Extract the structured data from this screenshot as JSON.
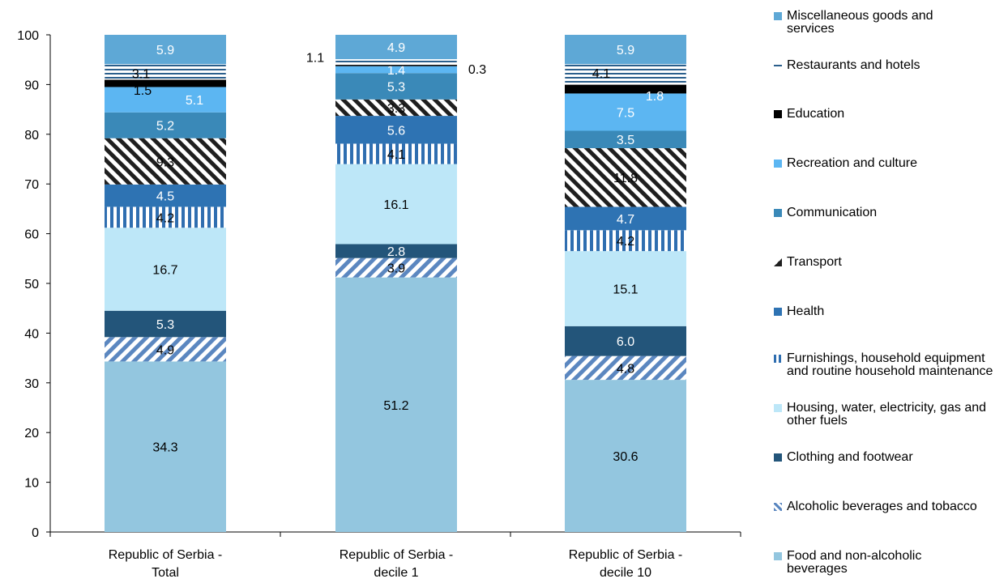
{
  "chart_data": {
    "type": "bar",
    "stacked": true,
    "categories": [
      "Republic of Serbia - Total",
      "Republic of Serbia - decile 1",
      "Republic of Serbia - decile 10"
    ],
    "ylim": [
      0,
      100
    ],
    "yticks": [
      0,
      10,
      20,
      30,
      40,
      50,
      60,
      70,
      80,
      90,
      100
    ],
    "grid": false,
    "legend_position": "right",
    "series": [
      {
        "name": "Food and non-alcoholic beverages",
        "color": "#93c6df",
        "pattern": "solid",
        "values": [
          34.3,
          51.2,
          30.6
        ],
        "labels": [
          "34.3",
          "51.2",
          "30.6"
        ]
      },
      {
        "name": "Alcoholic beverages and tobacco",
        "color": "#5b87c0",
        "pattern": "diag",
        "values": [
          4.9,
          3.9,
          4.8
        ],
        "labels": [
          "4.9",
          "3.9",
          "4.8"
        ]
      },
      {
        "name": "Clothing and footwear",
        "color": "#23557a",
        "pattern": "solid",
        "values": [
          5.3,
          2.8,
          6.0
        ],
        "labels": [
          "5.3",
          "2.8",
          "6.0"
        ]
      },
      {
        "name": "Housing, water, electricity, gas and other fuels",
        "color": "#bde7f8",
        "pattern": "solid",
        "values": [
          16.7,
          16.1,
          15.1
        ],
        "labels": [
          "16.7",
          "16.1",
          "15.1"
        ]
      },
      {
        "name": "Furnishings, household equipment and routine household maintenance",
        "color": "#2f6eb0",
        "pattern": "vert",
        "values": [
          4.2,
          4.1,
          4.2
        ],
        "labels": [
          "4.2",
          "4.1",
          "4.2"
        ]
      },
      {
        "name": "Health",
        "color": "#2e73b3",
        "pattern": "solid",
        "values": [
          4.5,
          5.6,
          4.7
        ],
        "labels": [
          "4.5",
          "5.6",
          "4.7"
        ]
      },
      {
        "name": "Transport",
        "color": "#1f1f1f",
        "pattern": "diagdark",
        "values": [
          9.3,
          3.3,
          11.8
        ],
        "labels": [
          "9.3",
          "3.3",
          "11.8"
        ]
      },
      {
        "name": "Communication",
        "color": "#3a89b8",
        "pattern": "solid",
        "values": [
          5.2,
          5.3,
          3.5
        ],
        "labels": [
          "5.2",
          "5.3",
          "3.5"
        ]
      },
      {
        "name": "Recreation and culture",
        "color": "#5cb6f2",
        "pattern": "solid",
        "values": [
          5.1,
          1.4,
          7.5
        ],
        "labels": [
          "5.1",
          "1.4",
          "7.5"
        ]
      },
      {
        "name": "Education",
        "color": "#000000",
        "pattern": "solid",
        "values": [
          1.5,
          0.3,
          1.8
        ],
        "labels": [
          "1.5",
          "0.3",
          "1.8"
        ]
      },
      {
        "name": "Restaurants and hotels",
        "color": "#2b5f8c",
        "pattern": "horiz",
        "values": [
          3.1,
          1.1,
          4.1
        ],
        "labels": [
          "3.1",
          "1.1",
          "4.1"
        ]
      },
      {
        "name": "Miscellaneous goods and services",
        "color": "#5ea8d6",
        "pattern": "solid",
        "values": [
          5.9,
          4.9,
          5.9
        ],
        "labels": [
          "5.9",
          "4.9",
          "5.9"
        ]
      }
    ]
  }
}
